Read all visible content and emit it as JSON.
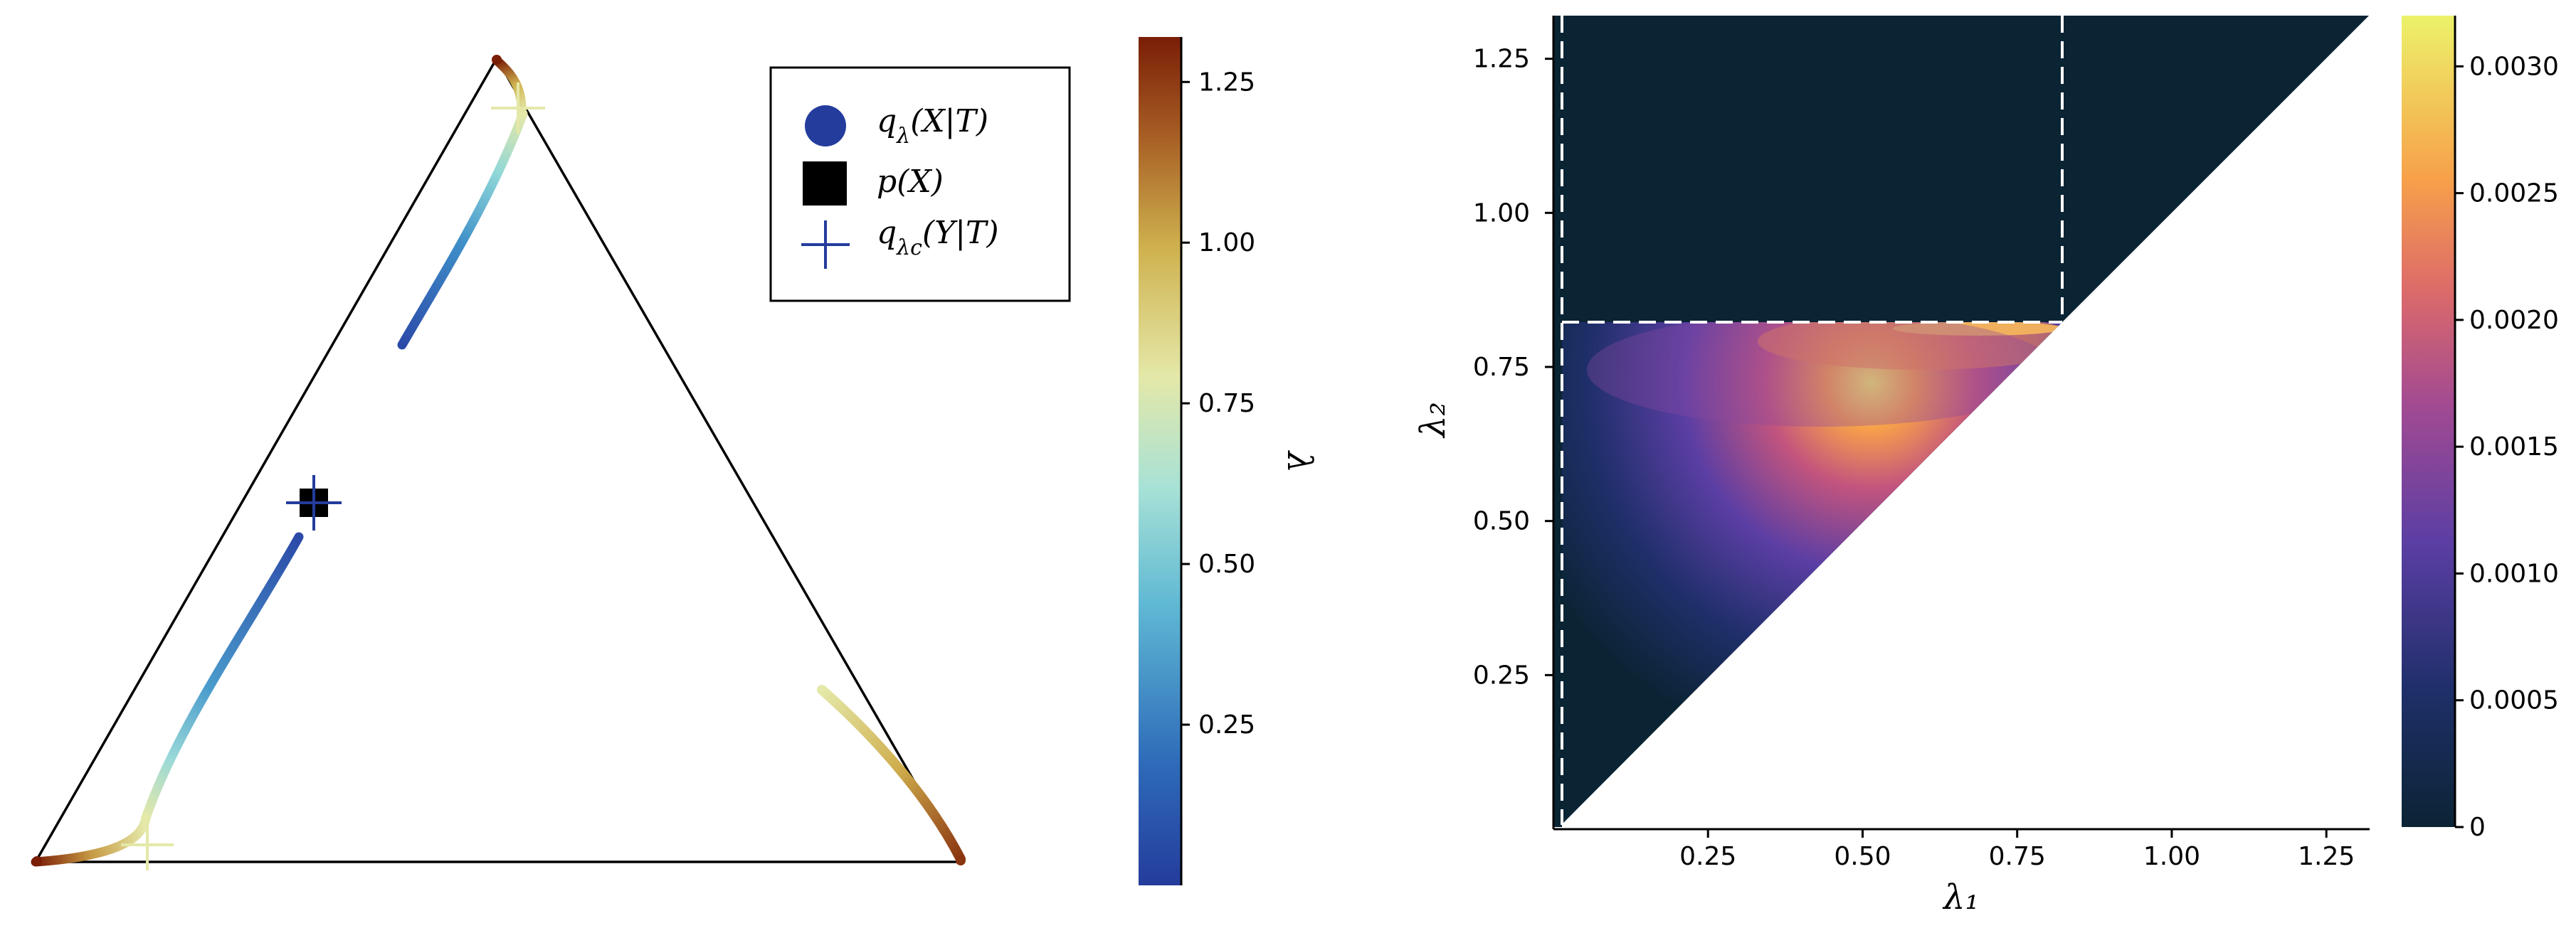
{
  "chart_data": [
    {
      "type": "scatter",
      "description_type": "simplex-trajectories",
      "legend": {
        "placement": "top-right",
        "entries": [
          {
            "key": "q_lambda",
            "label_main": "q",
            "label_sub": "λ",
            "label_rest": "(X|T)",
            "marker": "circle",
            "color": "#243c9c"
          },
          {
            "key": "p",
            "label_main": "p(X)",
            "label_sub": "",
            "label_rest": "",
            "marker": "square",
            "color": "#000000"
          },
          {
            "key": "q_lambda_c",
            "label_main": "q",
            "label_sub": "λc",
            "label_rest": "(Y|T)",
            "marker": "plus",
            "color": "#243c9c"
          }
        ]
      },
      "p_X": [
        0.3,
        0.5
      ],
      "q_lambda_c_Y": [
        0.3,
        0.5
      ],
      "colorbar": {
        "label": "λ",
        "range": [
          0.0,
          1.32
        ],
        "ticks": [
          0.25,
          0.5,
          0.75,
          1.0,
          1.25
        ],
        "tick_labels": [
          "0.25",
          "0.50",
          "0.75",
          "1.00",
          "1.25"
        ],
        "colormap": "turbo-like (blue → cyan → pale yellow → brown)"
      }
    },
    {
      "type": "heatmap",
      "xlabel": "λ₁",
      "ylabel": "λ₂",
      "xlim": [
        0.0,
        1.32
      ],
      "ylim": [
        0.0,
        1.32
      ],
      "xticks": [
        0.25,
        0.5,
        0.75,
        1.0,
        1.25
      ],
      "xtick_labels": [
        "0.25",
        "0.50",
        "0.75",
        "1.00",
        "1.25"
      ],
      "yticks": [
        0.25,
        0.5,
        0.75,
        1.0,
        1.25
      ],
      "ytick_labels": [
        "0.25",
        "0.50",
        "0.75",
        "1.00",
        "1.25"
      ],
      "region": "λ₂ ≥ λ₁",
      "peak": {
        "x": 0.72,
        "y": 0.81,
        "value": 0.0031
      },
      "dashed_lines": {
        "vertical": [
          0.02,
          0.82
        ],
        "horizontal": [
          0.82
        ]
      },
      "background_color": "#0b2434",
      "colorbar": {
        "range": [
          0.0,
          0.0032
        ],
        "ticks": [
          0,
          0.0005,
          0.001,
          0.0015,
          0.002,
          0.0025,
          0.003
        ],
        "tick_labels": [
          "0",
          "0.0005",
          "0.0010",
          "0.0015",
          "0.0020",
          "0.0025",
          "0.0030"
        ],
        "colormap": "plasma-like (dark navy → purple → orange → yellow)"
      }
    }
  ]
}
